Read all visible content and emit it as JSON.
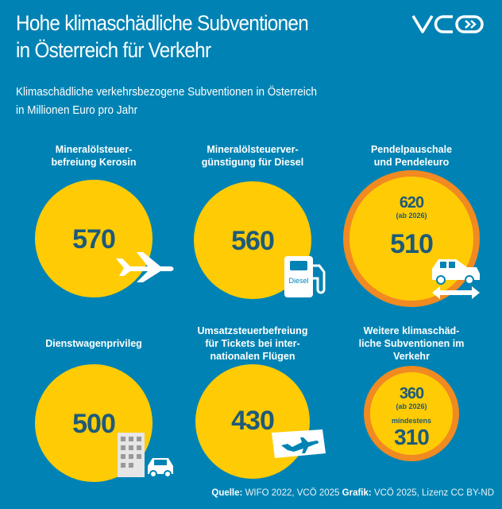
{
  "title_line1": "Hohe klimaschädliche Subventionen",
  "title_line2": "in Österreich für Verkehr",
  "subtitle_line1": "Klimaschädliche verkehrsbezogene Subventionen in Österreich",
  "subtitle_line2": "in Millionen Euro pro Jahr",
  "logo": "VCÖ",
  "colors": {
    "background": "#0083b4",
    "circle": "#ffcb05",
    "ring": "#f18a21",
    "number": "#1d5a7a"
  },
  "items": [
    {
      "label1": "Mineralölsteuer-",
      "label2": "befreiung Kerosin",
      "value": "570",
      "icon": "airplane-icon"
    },
    {
      "label1": "Mineralölsteuerver-",
      "label2": "günstigung für Diesel",
      "value": "560",
      "icon": "fuel-pump-icon",
      "icon_text": "Diesel"
    },
    {
      "label1": "Pendelpauschale",
      "label2": "und Pendeleuro",
      "value": "510",
      "future_value": "620",
      "future_note": "(ab 2026)",
      "icon": "car-commute-icon"
    },
    {
      "label1": "Dienstwagenprivileg",
      "value": "500",
      "icon": "office-car-icon"
    },
    {
      "label1": "Umsatzsteuerbefreiung",
      "label2": "für Tickets bei inter-",
      "label3": "nationalen Flügen",
      "value": "430",
      "icon": "flight-ticket-icon"
    },
    {
      "label1": "Weitere klimaschäd-",
      "label2": "liche Subventionen im",
      "label3": "Verkehr",
      "value": "310",
      "value_prefix": "mindestens",
      "future_value": "360",
      "future_note": "(ab 2026)"
    }
  ],
  "source": {
    "label": "Quelle:",
    "text": "WIFO 2022, VCÖ 2025",
    "grafik_label": "Grafik:",
    "grafik_text": "VCÖ 2025, Lizenz CC BY-ND"
  }
}
